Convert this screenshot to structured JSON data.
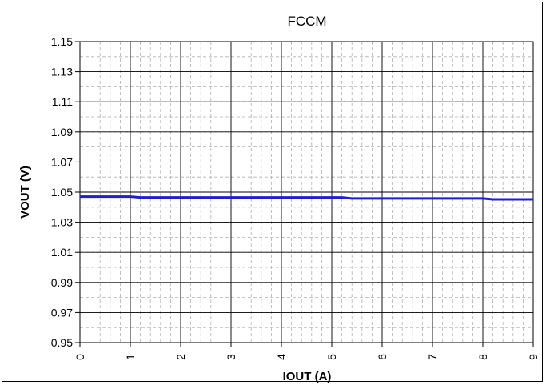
{
  "chart_data": {
    "type": "line",
    "title": "FCCM",
    "xlabel": "IOUT (A)",
    "ylabel": "VOUT (V)",
    "xlim": [
      0,
      9
    ],
    "ylim": [
      0.95,
      1.15
    ],
    "x_ticks": [
      "0",
      "1",
      "2",
      "3",
      "4",
      "5",
      "6",
      "7",
      "8",
      "9"
    ],
    "y_ticks": [
      "0.95",
      "0.97",
      "0.99",
      "1.01",
      "1.03",
      "1.05",
      "1.07",
      "1.09",
      "1.11",
      "1.13",
      "1.15"
    ],
    "grid": true,
    "minor_grid": "dashed",
    "line_color": "#1f1fd0",
    "series": [
      {
        "x": [
          0,
          1.0,
          1.2,
          2,
          3,
          4,
          5,
          5.2,
          5.4,
          6,
          7,
          8,
          8.2,
          9
        ],
        "y": [
          1.047,
          1.047,
          1.0465,
          1.0465,
          1.0465,
          1.0465,
          1.0465,
          1.0465,
          1.0458,
          1.0458,
          1.0458,
          1.0458,
          1.0452,
          1.0452
        ]
      }
    ]
  }
}
